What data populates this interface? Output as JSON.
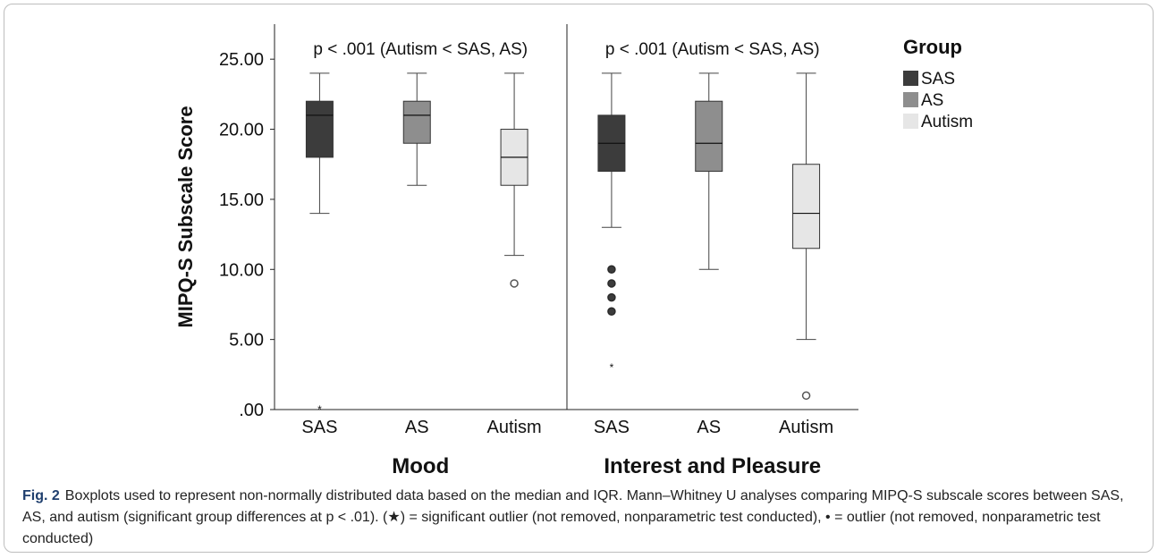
{
  "chart_data": {
    "type": "boxplot",
    "ylabel": "MIPQ-S Subscale Score",
    "ylim": [
      0,
      27.5
    ],
    "yticks": [
      0,
      5,
      10,
      15,
      20,
      25
    ],
    "ytick_labels": [
      ".00",
      "5.00",
      "10.00",
      "15.00",
      "20.00",
      "25.00"
    ],
    "legend": {
      "title": "Group",
      "position": "right",
      "entries": [
        {
          "name": "SAS",
          "color": "#3c3c3c"
        },
        {
          "name": "AS",
          "color": "#8e8e8e"
        },
        {
          "name": "Autism",
          "color": "#e6e6e6"
        }
      ]
    },
    "panels": [
      {
        "name": "Mood",
        "annotation": "p < .001 (Autism < SAS, AS)",
        "boxes": [
          {
            "group": "SAS",
            "min": 14,
            "q1": 18,
            "median": 21,
            "q3": 22,
            "max": 24,
            "outliers": [],
            "extremes": [
              0
            ]
          },
          {
            "group": "AS",
            "min": 16,
            "q1": 19,
            "median": 21,
            "q3": 22,
            "max": 24,
            "outliers": [],
            "extremes": []
          },
          {
            "group": "Autism",
            "min": 11,
            "q1": 16,
            "median": 18,
            "q3": 20,
            "max": 24,
            "outliers": [
              9
            ],
            "extremes": []
          }
        ]
      },
      {
        "name": "Interest and Pleasure",
        "annotation": "p < .001 (Autism < SAS, AS)",
        "boxes": [
          {
            "group": "SAS",
            "min": 13,
            "q1": 17,
            "median": 19,
            "q3": 21,
            "max": 24,
            "outliers": [
              10,
              9,
              8,
              7
            ],
            "extremes": [
              3
            ]
          },
          {
            "group": "AS",
            "min": 10,
            "q1": 17,
            "median": 19,
            "q3": 22,
            "max": 24,
            "outliers": [],
            "extremes": []
          },
          {
            "group": "Autism",
            "min": 5,
            "q1": 11.5,
            "median": 14,
            "q3": 17.5,
            "max": 24,
            "outliers": [
              1
            ],
            "extremes": []
          }
        ]
      }
    ]
  },
  "caption": {
    "label": "Fig. 2",
    "text": "Boxplots used to represent non-normally distributed data based on the median and IQR. Mann–Whitney U analyses comparing MIPQ-S subscale scores between SAS, AS, and autism (significant group differences at p < .01). (★) = significant outlier (not removed, nonparametric test conducted), • = outlier (not removed, nonparametric test conducted)"
  }
}
